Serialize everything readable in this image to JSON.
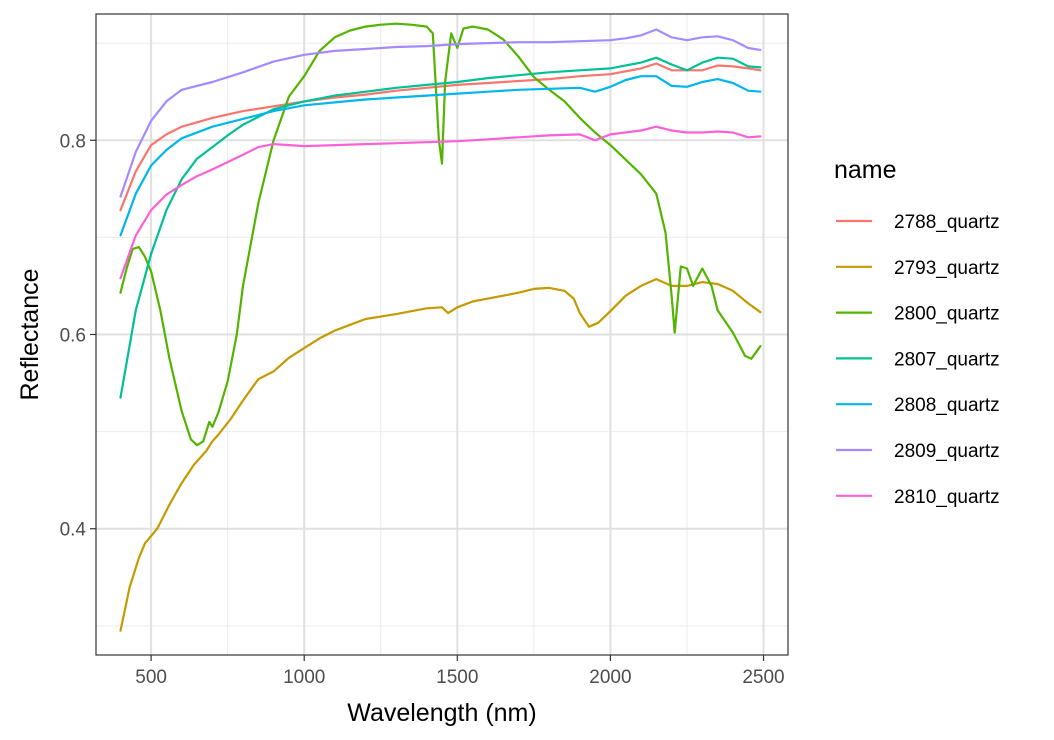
{
  "chart_data": {
    "type": "line",
    "title": "",
    "xlabel": "Wavelength (nm)",
    "ylabel": "Reflectance",
    "xlim": [
      320,
      2580
    ],
    "ylim": [
      0.27,
      0.93
    ],
    "x_ticks": [
      500,
      1000,
      1500,
      2000,
      2500
    ],
    "x_tick_labels": [
      "500",
      "1000",
      "1500",
      "2000",
      "2500"
    ],
    "y_ticks": [
      0.4,
      0.6,
      0.8
    ],
    "y_tick_labels": [
      "0.4",
      "0.6",
      "0.8"
    ],
    "grid": true,
    "legend_title": "name",
    "legend_position": "right",
    "series": [
      {
        "name": "2788_quartz",
        "color": "#F8766D",
        "points": [
          [
            400,
            0.728
          ],
          [
            450,
            0.768
          ],
          [
            500,
            0.795
          ],
          [
            550,
            0.806
          ],
          [
            600,
            0.814
          ],
          [
            700,
            0.823
          ],
          [
            800,
            0.83
          ],
          [
            900,
            0.835
          ],
          [
            1000,
            0.84
          ],
          [
            1100,
            0.844
          ],
          [
            1200,
            0.847
          ],
          [
            1300,
            0.851
          ],
          [
            1400,
            0.854
          ],
          [
            1500,
            0.857
          ],
          [
            1600,
            0.859
          ],
          [
            1700,
            0.861
          ],
          [
            1800,
            0.863
          ],
          [
            1900,
            0.866
          ],
          [
            2000,
            0.868
          ],
          [
            2100,
            0.874
          ],
          [
            2150,
            0.879
          ],
          [
            2200,
            0.872
          ],
          [
            2300,
            0.872
          ],
          [
            2350,
            0.877
          ],
          [
            2400,
            0.876
          ],
          [
            2450,
            0.874
          ],
          [
            2490,
            0.872
          ]
        ]
      },
      {
        "name": "2793_quartz",
        "color": "#C49A00",
        "points": [
          [
            400,
            0.295
          ],
          [
            430,
            0.34
          ],
          [
            460,
            0.37
          ],
          [
            480,
            0.385
          ],
          [
            520,
            0.4
          ],
          [
            560,
            0.425
          ],
          [
            600,
            0.447
          ],
          [
            640,
            0.466
          ],
          [
            680,
            0.48
          ],
          [
            700,
            0.49
          ],
          [
            720,
            0.497
          ],
          [
            760,
            0.513
          ],
          [
            800,
            0.532
          ],
          [
            850,
            0.554
          ],
          [
            900,
            0.562
          ],
          [
            950,
            0.576
          ],
          [
            1000,
            0.586
          ],
          [
            1050,
            0.596
          ],
          [
            1100,
            0.604
          ],
          [
            1150,
            0.61
          ],
          [
            1200,
            0.616
          ],
          [
            1300,
            0.621
          ],
          [
            1400,
            0.627
          ],
          [
            1450,
            0.628
          ],
          [
            1470,
            0.622
          ],
          [
            1500,
            0.628
          ],
          [
            1550,
            0.634
          ],
          [
            1600,
            0.637
          ],
          [
            1650,
            0.64
          ],
          [
            1700,
            0.643
          ],
          [
            1750,
            0.647
          ],
          [
            1800,
            0.648
          ],
          [
            1850,
            0.645
          ],
          [
            1880,
            0.637
          ],
          [
            1900,
            0.622
          ],
          [
            1930,
            0.608
          ],
          [
            1960,
            0.612
          ],
          [
            2000,
            0.624
          ],
          [
            2050,
            0.64
          ],
          [
            2100,
            0.65
          ],
          [
            2150,
            0.657
          ],
          [
            2200,
            0.65
          ],
          [
            2250,
            0.65
          ],
          [
            2300,
            0.654
          ],
          [
            2350,
            0.652
          ],
          [
            2400,
            0.645
          ],
          [
            2450,
            0.632
          ],
          [
            2490,
            0.623
          ]
        ]
      },
      {
        "name": "2800_quartz",
        "color": "#53B400",
        "points": [
          [
            400,
            0.643
          ],
          [
            420,
            0.668
          ],
          [
            440,
            0.688
          ],
          [
            460,
            0.69
          ],
          [
            480,
            0.68
          ],
          [
            500,
            0.665
          ],
          [
            530,
            0.625
          ],
          [
            560,
            0.575
          ],
          [
            600,
            0.521
          ],
          [
            630,
            0.492
          ],
          [
            650,
            0.486
          ],
          [
            670,
            0.49
          ],
          [
            690,
            0.51
          ],
          [
            700,
            0.505
          ],
          [
            720,
            0.52
          ],
          [
            750,
            0.552
          ],
          [
            780,
            0.6
          ],
          [
            800,
            0.65
          ],
          [
            850,
            0.735
          ],
          [
            900,
            0.8
          ],
          [
            950,
            0.845
          ],
          [
            1000,
            0.866
          ],
          [
            1050,
            0.892
          ],
          [
            1100,
            0.906
          ],
          [
            1150,
            0.913
          ],
          [
            1200,
            0.917
          ],
          [
            1250,
            0.919
          ],
          [
            1300,
            0.92
          ],
          [
            1350,
            0.919
          ],
          [
            1400,
            0.917
          ],
          [
            1420,
            0.91
          ],
          [
            1440,
            0.8
          ],
          [
            1450,
            0.776
          ],
          [
            1460,
            0.86
          ],
          [
            1480,
            0.91
          ],
          [
            1500,
            0.895
          ],
          [
            1520,
            0.915
          ],
          [
            1550,
            0.917
          ],
          [
            1600,
            0.914
          ],
          [
            1650,
            0.904
          ],
          [
            1700,
            0.886
          ],
          [
            1750,
            0.865
          ],
          [
            1800,
            0.852
          ],
          [
            1850,
            0.84
          ],
          [
            1900,
            0.823
          ],
          [
            1950,
            0.808
          ],
          [
            2000,
            0.795
          ],
          [
            2050,
            0.78
          ],
          [
            2100,
            0.765
          ],
          [
            2150,
            0.745
          ],
          [
            2180,
            0.705
          ],
          [
            2200,
            0.64
          ],
          [
            2210,
            0.602
          ],
          [
            2230,
            0.67
          ],
          [
            2250,
            0.668
          ],
          [
            2270,
            0.65
          ],
          [
            2300,
            0.668
          ],
          [
            2330,
            0.65
          ],
          [
            2350,
            0.625
          ],
          [
            2400,
            0.602
          ],
          [
            2440,
            0.578
          ],
          [
            2460,
            0.575
          ],
          [
            2490,
            0.588
          ]
        ]
      },
      {
        "name": "2807_quartz",
        "color": "#00C094",
        "points": [
          [
            400,
            0.535
          ],
          [
            450,
            0.625
          ],
          [
            500,
            0.683
          ],
          [
            550,
            0.728
          ],
          [
            600,
            0.76
          ],
          [
            650,
            0.781
          ],
          [
            700,
            0.793
          ],
          [
            750,
            0.805
          ],
          [
            800,
            0.816
          ],
          [
            900,
            0.832
          ],
          [
            1000,
            0.84
          ],
          [
            1100,
            0.846
          ],
          [
            1200,
            0.85
          ],
          [
            1300,
            0.854
          ],
          [
            1400,
            0.857
          ],
          [
            1500,
            0.86
          ],
          [
            1600,
            0.864
          ],
          [
            1700,
            0.867
          ],
          [
            1800,
            0.87
          ],
          [
            1900,
            0.872
          ],
          [
            2000,
            0.874
          ],
          [
            2100,
            0.88
          ],
          [
            2150,
            0.885
          ],
          [
            2200,
            0.878
          ],
          [
            2250,
            0.872
          ],
          [
            2300,
            0.88
          ],
          [
            2350,
            0.885
          ],
          [
            2400,
            0.884
          ],
          [
            2450,
            0.876
          ],
          [
            2490,
            0.875
          ]
        ]
      },
      {
        "name": "2808_quartz",
        "color": "#00B6EB",
        "points": [
          [
            400,
            0.702
          ],
          [
            450,
            0.745
          ],
          [
            500,
            0.774
          ],
          [
            550,
            0.79
          ],
          [
            600,
            0.802
          ],
          [
            700,
            0.814
          ],
          [
            800,
            0.822
          ],
          [
            900,
            0.83
          ],
          [
            1000,
            0.836
          ],
          [
            1100,
            0.839
          ],
          [
            1200,
            0.842
          ],
          [
            1300,
            0.844
          ],
          [
            1400,
            0.846
          ],
          [
            1500,
            0.848
          ],
          [
            1600,
            0.85
          ],
          [
            1700,
            0.852
          ],
          [
            1800,
            0.853
          ],
          [
            1900,
            0.854
          ],
          [
            1950,
            0.85
          ],
          [
            2000,
            0.855
          ],
          [
            2050,
            0.862
          ],
          [
            2100,
            0.866
          ],
          [
            2150,
            0.866
          ],
          [
            2200,
            0.856
          ],
          [
            2250,
            0.855
          ],
          [
            2300,
            0.86
          ],
          [
            2350,
            0.863
          ],
          [
            2400,
            0.859
          ],
          [
            2450,
            0.851
          ],
          [
            2490,
            0.85
          ]
        ]
      },
      {
        "name": "2809_quartz",
        "color": "#A58AFF",
        "points": [
          [
            400,
            0.742
          ],
          [
            450,
            0.788
          ],
          [
            500,
            0.82
          ],
          [
            550,
            0.84
          ],
          [
            600,
            0.852
          ],
          [
            700,
            0.86
          ],
          [
            800,
            0.87
          ],
          [
            900,
            0.881
          ],
          [
            1000,
            0.888
          ],
          [
            1100,
            0.892
          ],
          [
            1200,
            0.894
          ],
          [
            1300,
            0.896
          ],
          [
            1400,
            0.897
          ],
          [
            1500,
            0.899
          ],
          [
            1600,
            0.9
          ],
          [
            1700,
            0.901
          ],
          [
            1800,
            0.901
          ],
          [
            1900,
            0.902
          ],
          [
            2000,
            0.903
          ],
          [
            2050,
            0.905
          ],
          [
            2100,
            0.908
          ],
          [
            2150,
            0.914
          ],
          [
            2200,
            0.906
          ],
          [
            2250,
            0.903
          ],
          [
            2300,
            0.906
          ],
          [
            2350,
            0.907
          ],
          [
            2400,
            0.903
          ],
          [
            2450,
            0.895
          ],
          [
            2490,
            0.893
          ]
        ]
      },
      {
        "name": "2810_quartz",
        "color": "#FB61D7",
        "points": [
          [
            400,
            0.658
          ],
          [
            450,
            0.702
          ],
          [
            500,
            0.728
          ],
          [
            550,
            0.744
          ],
          [
            600,
            0.754
          ],
          [
            650,
            0.763
          ],
          [
            700,
            0.77
          ],
          [
            800,
            0.785
          ],
          [
            850,
            0.793
          ],
          [
            900,
            0.796
          ],
          [
            1000,
            0.794
          ],
          [
            1100,
            0.795
          ],
          [
            1200,
            0.796
          ],
          [
            1300,
            0.797
          ],
          [
            1400,
            0.798
          ],
          [
            1500,
            0.799
          ],
          [
            1600,
            0.801
          ],
          [
            1700,
            0.803
          ],
          [
            1800,
            0.805
          ],
          [
            1900,
            0.806
          ],
          [
            1950,
            0.8
          ],
          [
            2000,
            0.806
          ],
          [
            2100,
            0.81
          ],
          [
            2150,
            0.814
          ],
          [
            2200,
            0.81
          ],
          [
            2250,
            0.808
          ],
          [
            2300,
            0.808
          ],
          [
            2350,
            0.809
          ],
          [
            2400,
            0.808
          ],
          [
            2450,
            0.803
          ],
          [
            2490,
            0.804
          ]
        ]
      }
    ]
  }
}
